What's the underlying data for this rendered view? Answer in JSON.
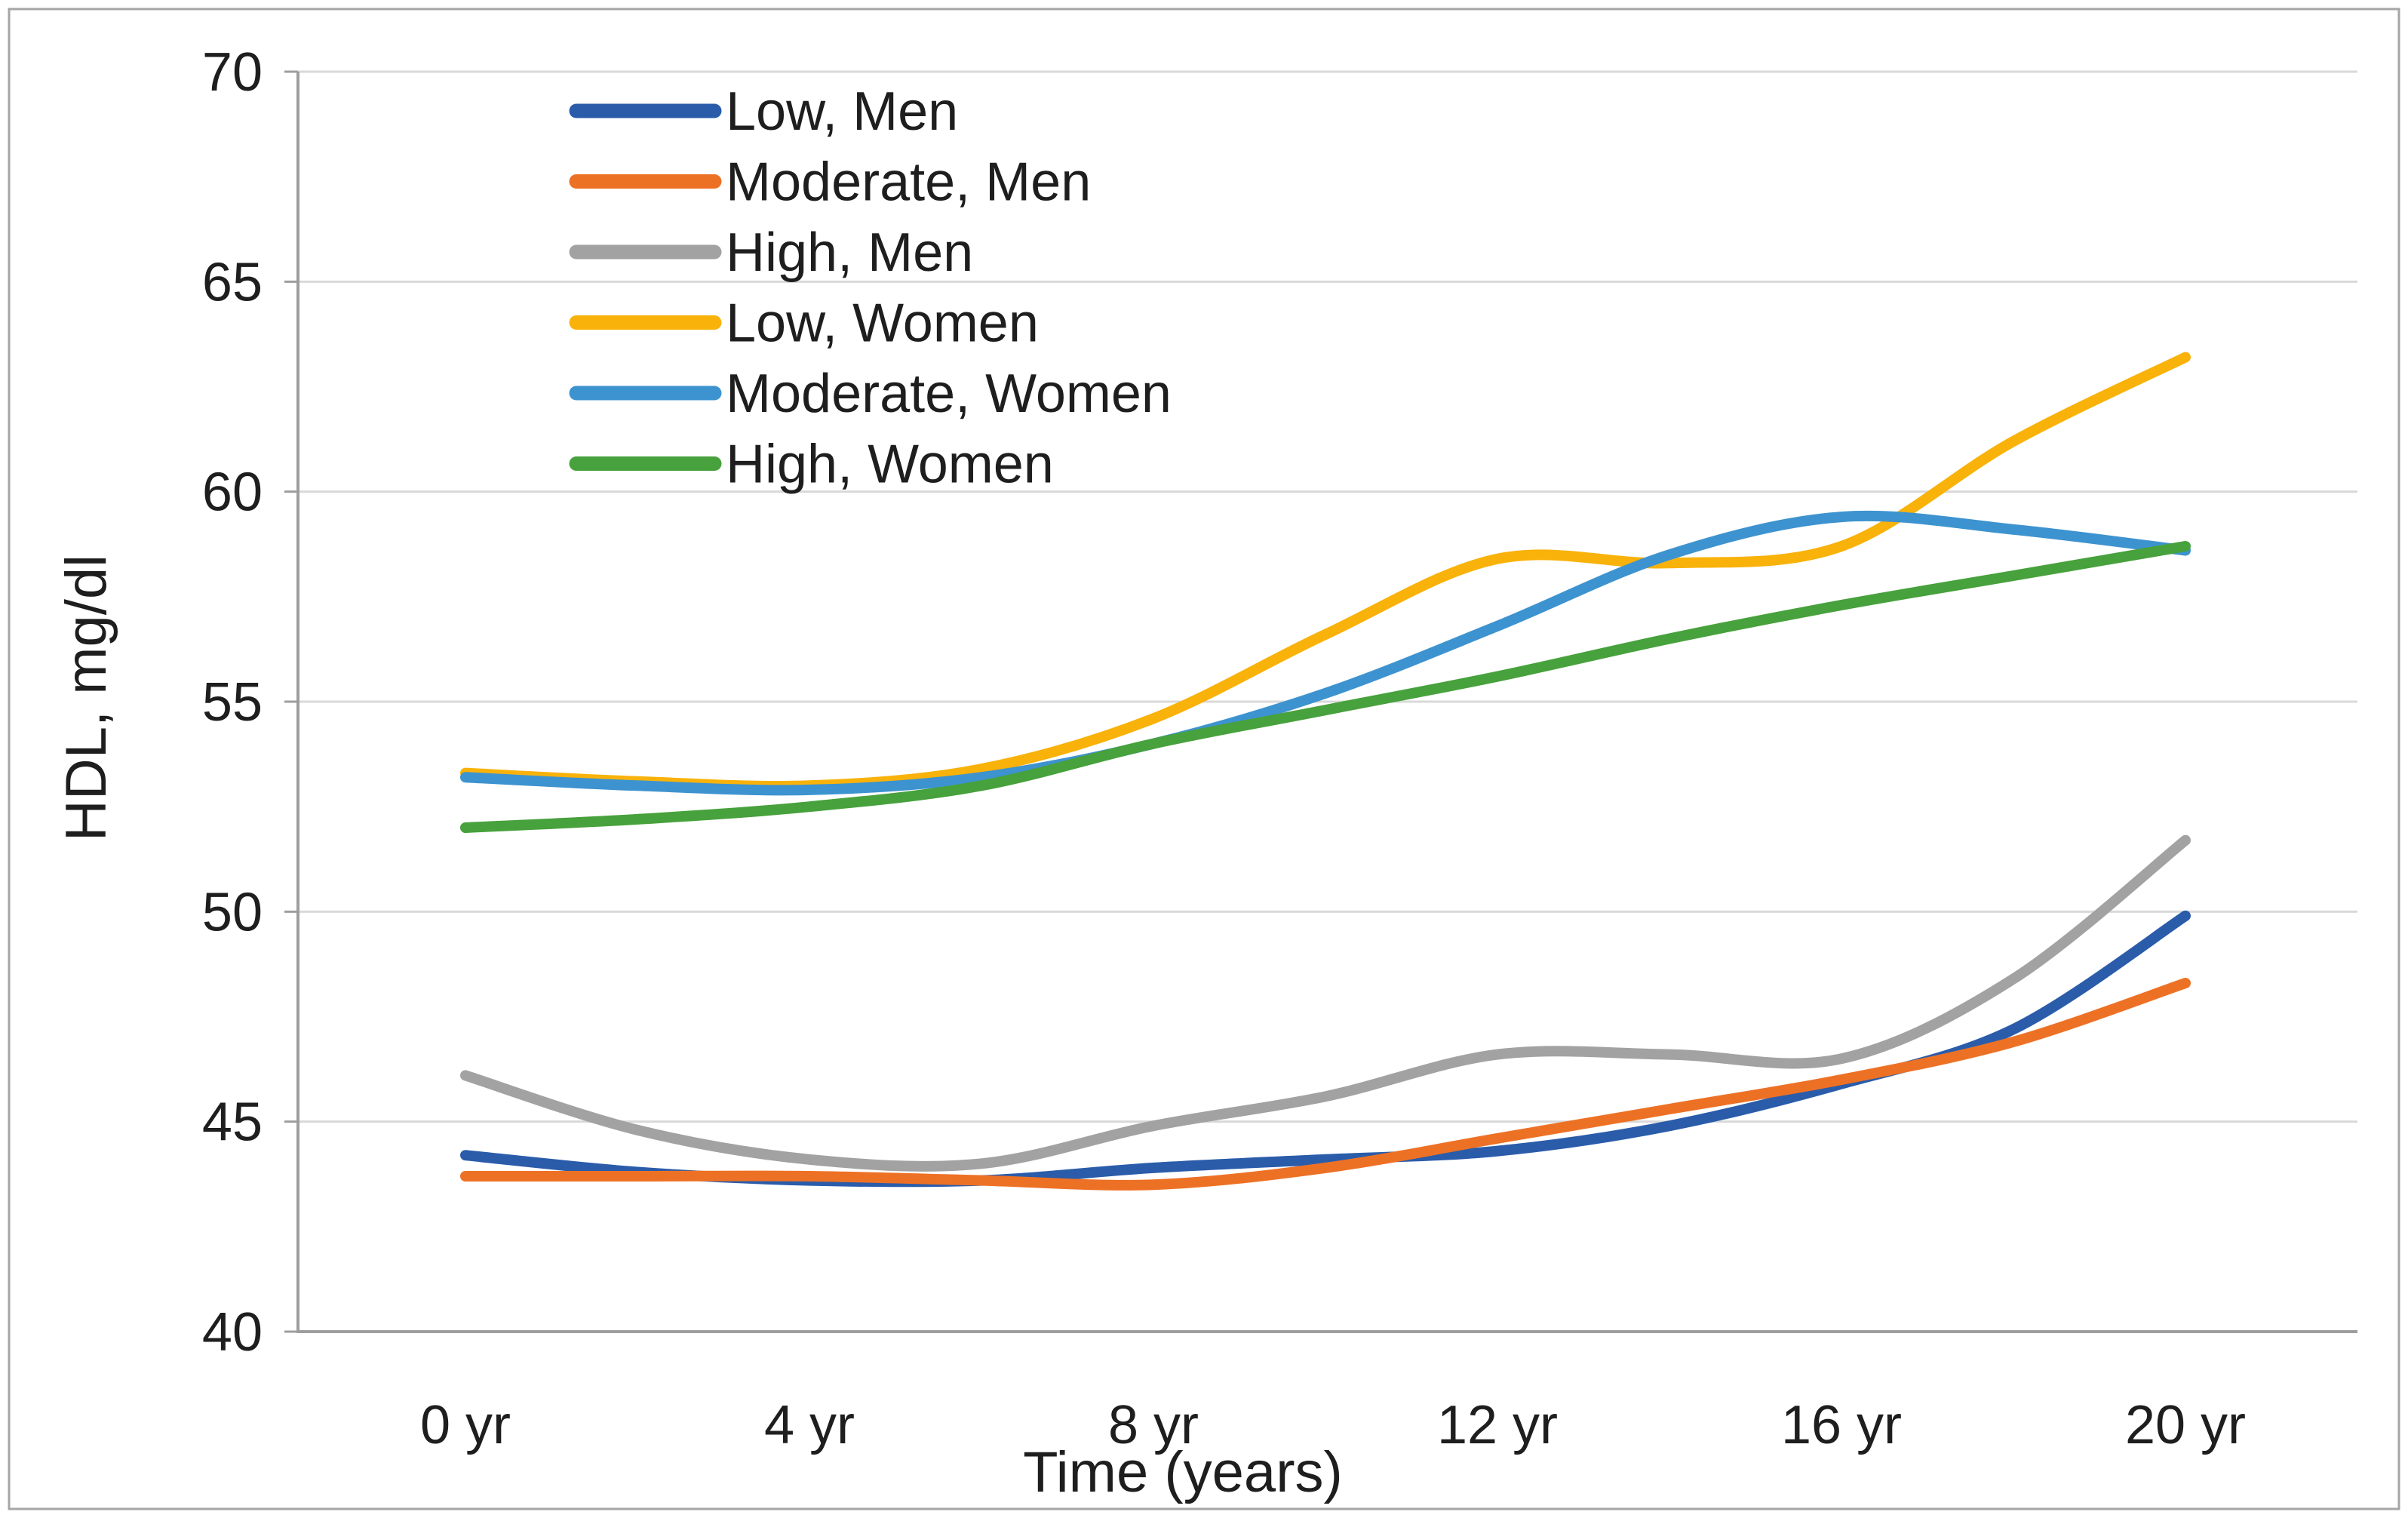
{
  "chart_data": {
    "type": "line",
    "title": "",
    "xlabel": "Time (years)",
    "ylabel": "HDL, mg/dl",
    "x": [
      0,
      2,
      4,
      6,
      8,
      10,
      12,
      14,
      16,
      18,
      20
    ],
    "x_tick_years": [
      0,
      4,
      8,
      12,
      16,
      20
    ],
    "x_tick_labels": [
      "0 yr",
      "4 yr",
      "8 yr",
      "12 yr",
      "16 yr",
      "20 yr"
    ],
    "y_ticks": [
      40,
      45,
      50,
      55,
      60,
      65,
      70
    ],
    "ylim": [
      40,
      70
    ],
    "grid": true,
    "legend_position": "top-left-inside",
    "smoothed_lines": true,
    "series": [
      {
        "name": "Low, Men",
        "color": "#2a5caa",
        "values": [
          44.2,
          43.8,
          43.6,
          43.6,
          43.9,
          44.1,
          44.3,
          44.9,
          45.9,
          47.2,
          49.9
        ]
      },
      {
        "name": "Moderate, Men",
        "color": "#ed7125",
        "values": [
          43.7,
          43.7,
          43.7,
          43.6,
          43.5,
          43.9,
          44.6,
          45.3,
          46.0,
          46.9,
          48.3
        ]
      },
      {
        "name": "High, Men",
        "color": "#a2a2a2",
        "values": [
          46.1,
          44.8,
          44.1,
          44.0,
          44.9,
          45.6,
          46.6,
          46.6,
          46.5,
          48.4,
          51.7
        ]
      },
      {
        "name": "Low, Women",
        "color": "#f8b20a",
        "values": [
          53.3,
          53.1,
          53.0,
          53.4,
          54.6,
          56.6,
          58.4,
          58.3,
          58.7,
          61.2,
          63.2
        ]
      },
      {
        "name": "Moderate, Women",
        "color": "#3d93cf",
        "values": [
          53.2,
          53.0,
          52.9,
          53.2,
          54.0,
          55.2,
          56.8,
          58.5,
          59.4,
          59.1,
          58.6
        ]
      },
      {
        "name": "High, Women",
        "color": "#47a13c",
        "values": [
          52.0,
          52.2,
          52.5,
          53.0,
          54.0,
          54.8,
          55.6,
          56.5,
          57.3,
          58.0,
          58.7
        ]
      }
    ],
    "axis_color": "#9e9e9e",
    "grid_color": "#d9d9d9",
    "text_color": "#1e1e1e",
    "border_color": "#a6a6a6"
  }
}
